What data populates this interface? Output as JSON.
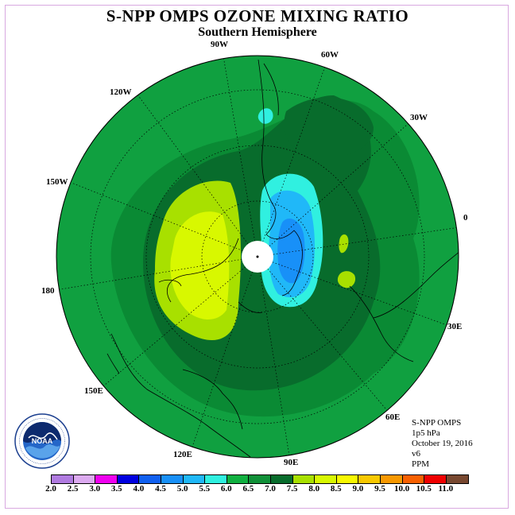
{
  "title": "S-NPP OMPS OZONE MIXING RATIO",
  "subtitle": "Southern Hemisphere",
  "longitude_labels": {
    "lon_90w": "90W",
    "lon_60w": "60W",
    "lon_30w": "30W",
    "lon_0": "0",
    "lon_30e": "30E",
    "lon_60e": "60E",
    "lon_90e": "90E",
    "lon_120e": "120E",
    "lon_150e": "150E",
    "lon_180": "180",
    "lon_150w": "150W",
    "lon_120w": "120W"
  },
  "info": {
    "instrument": "S-NPP OMPS",
    "level": "1p5 hPa",
    "date": "October 19, 2016",
    "version": "v6",
    "units": "PPM"
  },
  "logo": {
    "text": "NOAA",
    "ring_text": "NATIONAL OCEANIC AND ATMOSPHERIC ADMINISTRATION U.S. DEPARTMENT OF COMMERCE"
  },
  "colorbar": {
    "ticks": [
      "2.0",
      "2.5",
      "3.0",
      "3.5",
      "4.0",
      "4.5",
      "5.0",
      "5.5",
      "6.0",
      "6.5",
      "7.0",
      "7.5",
      "8.0",
      "8.5",
      "9.0",
      "9.5",
      "10.0",
      "10.5",
      "11.0"
    ],
    "colors": [
      "#b07be0",
      "#dcaaf0",
      "#f000f0",
      "#0000e0",
      "#1060f0",
      "#1890f8",
      "#20b8f8",
      "#30f0e0",
      "#10b040",
      "#109038",
      "#086c2c",
      "#a8e000",
      "#d8f800",
      "#f8f800",
      "#f8c800",
      "#f89800",
      "#f86000",
      "#f00000",
      "#784830"
    ]
  },
  "map": {
    "projection": "south polar stereographic",
    "background_level": "6.0-6.5",
    "colors": {
      "ocean_base": "#10a040",
      "band_65": "#0a8a34",
      "band_70": "#086c2c",
      "band_75": "#a8e000",
      "band_80": "#d8f800",
      "band_55": "#30f0e0",
      "band_50": "#20b8f8",
      "band_45": "#1890f8",
      "polar_hole": "#ffffff"
    }
  }
}
